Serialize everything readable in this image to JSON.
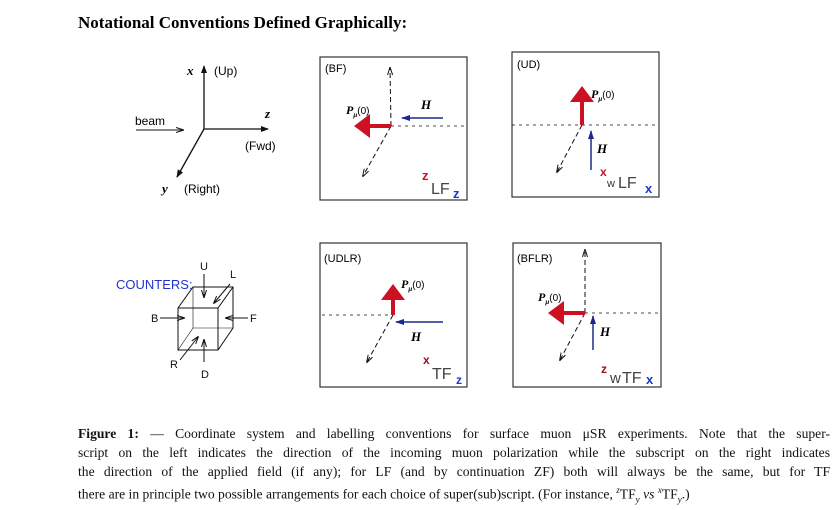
{
  "title": "Notational Conventions Defined Graphically:",
  "axes": {
    "x_label": "x",
    "x_dir": "(Up)",
    "z_label": "z",
    "z_dir": "(Fwd)",
    "y_label": "y",
    "y_dir": "(Right)",
    "beam_label": "beam"
  },
  "counters": {
    "label": "COUNTERS:",
    "up": "U",
    "left": "L",
    "back": "B",
    "forward": "F",
    "right": "R",
    "down": "D",
    "label_color": "#2233cc"
  },
  "panels": [
    {
      "name": "(BF)",
      "polarization_label": "P",
      "polarization_sub": "μ",
      "polarization_arg": "(0)",
      "field_label": "H",
      "sup": "z",
      "prefix": "",
      "core": "LF",
      "sub": "z"
    },
    {
      "name": "(UD)",
      "polarization_label": "P",
      "polarization_sub": "μ",
      "polarization_arg": "(0)",
      "field_label": "H",
      "sup": "x",
      "prefix": "w",
      "core": "LF",
      "sub": "x"
    },
    {
      "name": "(UDLR)",
      "polarization_label": "P",
      "polarization_sub": "μ",
      "polarization_arg": "(0)",
      "field_label": "H",
      "sup": "x",
      "prefix": "",
      "core": "TF",
      "sub": "z"
    },
    {
      "name": "(BFLR)",
      "polarization_label": "P",
      "polarization_sub": "μ",
      "polarization_arg": "(0)",
      "field_label": "H",
      "sup": "z",
      "prefix": "w",
      "core": "TF",
      "sub": "x"
    }
  ],
  "colors": {
    "polarization": "#cc1122",
    "field": "#1a2a8a",
    "superscript": "#cc1122",
    "subscript": "#1a3acc"
  },
  "caption": {
    "label": "Figure 1:",
    "line1": "— Coordinate system and labelling conventions for surface muon μSR experiments. Note that the super-",
    "line2": "script on the left indicates the direction of the incoming muon polarization while the subscript on the right indicates",
    "line3": "the direction of the applied field (if any); for LF (and by continuation ZF) both will always be the same, but for TF",
    "line4_a": "there are in principle two possible arrangements for each choice of super(sub)script. (For instance,",
    "ex1_sup": "z",
    "ex1_core": "TF",
    "ex1_sub": "y",
    "vs": "vs",
    "ex2_sup": "x",
    "ex2_core": "TF",
    "ex2_sub": "y",
    "line4_end": ".)"
  }
}
